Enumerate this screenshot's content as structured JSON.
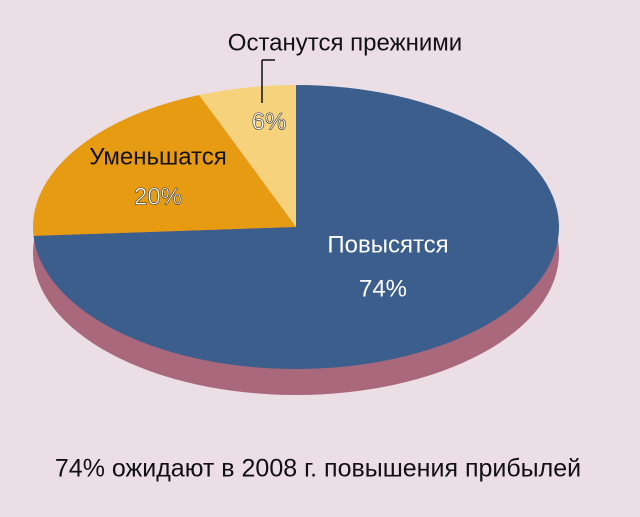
{
  "chart_data": {
    "type": "pie",
    "title": "74% ожидают в 2008 г. повышения прибылей",
    "categories": [
      "Повысятся",
      "Уменьшатся",
      "Останутся прежними"
    ],
    "values": [
      74,
      20,
      6
    ],
    "value_labels": [
      "74%",
      "20%",
      "6%"
    ],
    "colors": [
      "#3b5e8c",
      "#e69b12",
      "#f6d27c"
    ]
  }
}
